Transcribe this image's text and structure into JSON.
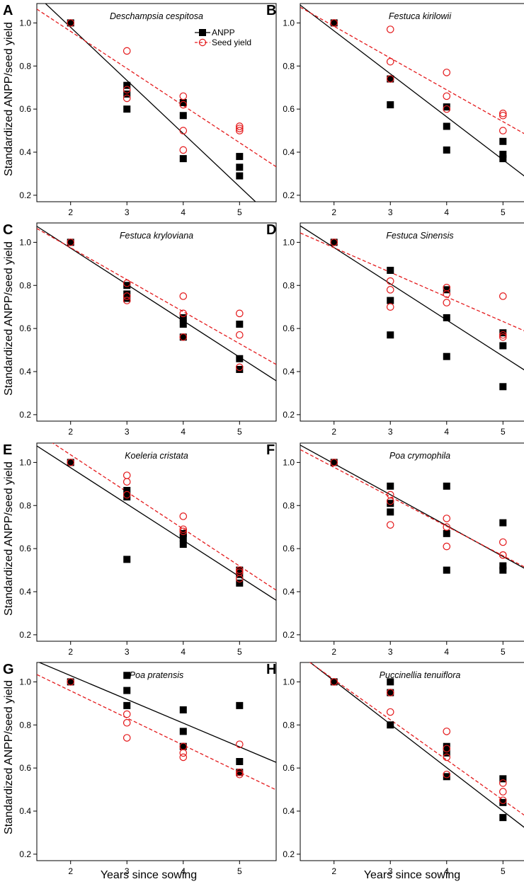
{
  "figure": {
    "ylabel": "Standardized ANPP/seed yield",
    "xlabel": "Years since sowing",
    "legend": [
      {
        "label": "ANPP",
        "marker": "filled-square",
        "line": "solid",
        "color": "#000000"
      },
      {
        "label": "Seed yield",
        "marker": "open-circle",
        "line": "dashed",
        "color": "#e41a1c"
      }
    ],
    "colors": {
      "anpp": "#000000",
      "seed": "#e41a1c"
    }
  },
  "chart_data": [
    {
      "type": "scatter",
      "letter": "A",
      "title": "Deschampsia cespitosa",
      "x_ticks": [
        2,
        3,
        4,
        5
      ],
      "y_ticks": [
        0.2,
        0.4,
        0.6,
        0.8,
        1.0
      ],
      "xlim": [
        1.4,
        5.65
      ],
      "ylim": [
        0.17,
        1.09
      ],
      "anpp": [
        [
          2,
          1.0
        ],
        [
          3,
          0.71
        ],
        [
          3,
          0.67
        ],
        [
          3,
          0.6
        ],
        [
          4,
          0.63
        ],
        [
          4,
          0.57
        ],
        [
          4,
          0.37
        ],
        [
          5,
          0.38
        ],
        [
          5,
          0.33
        ],
        [
          5,
          0.29
        ]
      ],
      "seed": [
        [
          2,
          1.0
        ],
        [
          3,
          0.87
        ],
        [
          3,
          0.69
        ],
        [
          3,
          0.65
        ],
        [
          4,
          0.66
        ],
        [
          4,
          0.62
        ],
        [
          4,
          0.5
        ],
        [
          4,
          0.41
        ],
        [
          5,
          0.52
        ],
        [
          5,
          0.51
        ],
        [
          5,
          0.5
        ]
      ],
      "anpp_fit": [
        -0.2467,
        1.4733
      ],
      "seed_fit": [
        -0.1722,
        1.3052
      ]
    },
    {
      "type": "scatter",
      "letter": "B",
      "title": "Festuca kirilowii",
      "x_ticks": [
        2,
        3,
        4,
        5
      ],
      "y_ticks": [
        0.2,
        0.4,
        0.6,
        0.8,
        1.0
      ],
      "xlim": [
        1.4,
        5.65
      ],
      "ylim": [
        0.17,
        1.09
      ],
      "anpp": [
        [
          2,
          1.0
        ],
        [
          3,
          0.74
        ],
        [
          3,
          0.62
        ],
        [
          4,
          0.61
        ],
        [
          4,
          0.52
        ],
        [
          4,
          0.41
        ],
        [
          5,
          0.45
        ],
        [
          5,
          0.39
        ],
        [
          5,
          0.37
        ]
      ],
      "seed": [
        [
          2,
          1.0
        ],
        [
          3,
          0.97
        ],
        [
          3,
          0.82
        ],
        [
          3,
          0.74
        ],
        [
          4,
          0.77
        ],
        [
          4,
          0.66
        ],
        [
          4,
          0.6
        ],
        [
          5,
          0.58
        ],
        [
          5,
          0.57
        ],
        [
          5,
          0.5
        ]
      ],
      "anpp_fit": [
        -0.1995,
        1.362
      ],
      "seed_fit": [
        -0.1476,
        1.2797
      ]
    },
    {
      "type": "scatter",
      "letter": "C",
      "title": "Festuca kryloviana",
      "x_ticks": [
        2,
        3,
        4,
        5
      ],
      "y_ticks": [
        0.2,
        0.4,
        0.6,
        0.8,
        1.0
      ],
      "xlim": [
        1.4,
        5.65
      ],
      "ylim": [
        0.17,
        1.09
      ],
      "anpp": [
        [
          2,
          1.0
        ],
        [
          3,
          0.8
        ],
        [
          3,
          0.76
        ],
        [
          3,
          0.74
        ],
        [
          4,
          0.65
        ],
        [
          4,
          0.62
        ],
        [
          4,
          0.56
        ],
        [
          5,
          0.62
        ],
        [
          5,
          0.46
        ],
        [
          5,
          0.41
        ]
      ],
      "seed": [
        [
          2,
          1.0
        ],
        [
          3,
          0.81
        ],
        [
          3,
          0.75
        ],
        [
          3,
          0.73
        ],
        [
          4,
          0.75
        ],
        [
          4,
          0.67
        ],
        [
          4,
          0.56
        ],
        [
          5,
          0.67
        ],
        [
          5,
          0.57
        ],
        [
          5,
          0.42
        ]
      ],
      "anpp_fit": [
        -0.1687,
        1.3105
      ],
      "seed_fit": [
        -0.1485,
        1.2722
      ]
    },
    {
      "type": "scatter",
      "letter": "D",
      "title": "Festuca Sinensis",
      "x_ticks": [
        2,
        3,
        4,
        5
      ],
      "y_ticks": [
        0.2,
        0.4,
        0.6,
        0.8,
        1.0
      ],
      "xlim": [
        1.4,
        5.65
      ],
      "ylim": [
        0.17,
        1.09
      ],
      "anpp": [
        [
          2,
          1.0
        ],
        [
          3,
          0.87
        ],
        [
          3,
          0.73
        ],
        [
          3,
          0.57
        ],
        [
          4,
          0.78
        ],
        [
          4,
          0.65
        ],
        [
          4,
          0.47
        ],
        [
          5,
          0.58
        ],
        [
          5,
          0.52
        ],
        [
          5,
          0.33
        ]
      ],
      "seed": [
        [
          2,
          1.0
        ],
        [
          3,
          0.82
        ],
        [
          3,
          0.78
        ],
        [
          3,
          0.7
        ],
        [
          4,
          0.79
        ],
        [
          4,
          0.76
        ],
        [
          4,
          0.72
        ],
        [
          5,
          0.75
        ],
        [
          5,
          0.57
        ],
        [
          5,
          0.56
        ]
      ],
      "anpp_fit": [
        -0.1682,
        1.3122
      ],
      "seed_fit": [
        -0.1142,
        1.2034
      ]
    },
    {
      "type": "scatter",
      "letter": "E",
      "title": "Koeleria cristata",
      "x_ticks": [
        2,
        3,
        4,
        5
      ],
      "y_ticks": [
        0.2,
        0.4,
        0.6,
        0.8,
        1.0
      ],
      "xlim": [
        1.4,
        5.65
      ],
      "ylim": [
        0.17,
        1.09
      ],
      "anpp": [
        [
          2,
          1.0
        ],
        [
          3,
          0.87
        ],
        [
          3,
          0.84
        ],
        [
          3,
          0.55
        ],
        [
          4,
          0.67
        ],
        [
          4,
          0.65
        ],
        [
          4,
          0.62
        ],
        [
          5,
          0.5
        ],
        [
          5,
          0.48
        ],
        [
          5,
          0.44
        ]
      ],
      "seed": [
        [
          2,
          1.0
        ],
        [
          3,
          0.94
        ],
        [
          3,
          0.91
        ],
        [
          3,
          0.85
        ],
        [
          4,
          0.75
        ],
        [
          4,
          0.69
        ],
        [
          4,
          0.68
        ],
        [
          5,
          0.5
        ],
        [
          5,
          0.49
        ],
        [
          5,
          0.46
        ]
      ],
      "anpp_fit": [
        -0.1686,
        1.3128
      ],
      "seed_fit": [
        -0.1722,
        1.38
      ]
    },
    {
      "type": "scatter",
      "letter": "F",
      "title": "Poa crymophila",
      "x_ticks": [
        2,
        3,
        4,
        5
      ],
      "y_ticks": [
        0.2,
        0.4,
        0.6,
        0.8,
        1.0
      ],
      "xlim": [
        1.4,
        5.65
      ],
      "ylim": [
        0.17,
        1.09
      ],
      "anpp": [
        [
          2,
          1.0
        ],
        [
          3,
          0.89
        ],
        [
          3,
          0.81
        ],
        [
          3,
          0.77
        ],
        [
          4,
          0.89
        ],
        [
          4,
          0.67
        ],
        [
          4,
          0.5
        ],
        [
          5,
          0.72
        ],
        [
          5,
          0.52
        ],
        [
          5,
          0.5
        ]
      ],
      "seed": [
        [
          2,
          1.0
        ],
        [
          3,
          0.85
        ],
        [
          3,
          0.82
        ],
        [
          3,
          0.71
        ],
        [
          4,
          0.74
        ],
        [
          4,
          0.7
        ],
        [
          4,
          0.61
        ],
        [
          5,
          0.63
        ],
        [
          5,
          0.57
        ],
        [
          5,
          0.57
        ]
      ],
      "anpp_fit": [
        -0.1437,
        1.2817
      ],
      "seed_fit": [
        -0.1368,
        1.251
      ]
    },
    {
      "type": "scatter",
      "letter": "G",
      "title": "Poa pratensis",
      "x_ticks": [
        2,
        3,
        4,
        5
      ],
      "y_ticks": [
        0.2,
        0.4,
        0.6,
        0.8,
        1.0
      ],
      "xlim": [
        1.4,
        5.65
      ],
      "ylim": [
        0.17,
        1.09
      ],
      "anpp": [
        [
          2,
          1.0
        ],
        [
          3,
          1.03
        ],
        [
          3,
          0.96
        ],
        [
          3,
          0.89
        ],
        [
          4,
          0.87
        ],
        [
          4,
          0.77
        ],
        [
          4,
          0.7
        ],
        [
          5,
          0.89
        ],
        [
          5,
          0.63
        ],
        [
          5,
          0.58
        ]
      ],
      "seed": [
        [
          2,
          1.0
        ],
        [
          3,
          0.85
        ],
        [
          3,
          0.81
        ],
        [
          3,
          0.74
        ],
        [
          4,
          0.7
        ],
        [
          4,
          0.67
        ],
        [
          4,
          0.65
        ],
        [
          5,
          0.71
        ],
        [
          5,
          0.58
        ],
        [
          5,
          0.57
        ]
      ],
      "anpp_fit": [
        -0.1103,
        1.2495
      ],
      "seed_fit": [
        -0.126,
        1.2103
      ]
    },
    {
      "type": "scatter",
      "letter": "H",
      "title": "Puccinellia tenuiflora",
      "x_ticks": [
        2,
        3,
        4,
        5
      ],
      "y_ticks": [
        0.2,
        0.4,
        0.6,
        0.8,
        1.0
      ],
      "xlim": [
        1.4,
        5.65
      ],
      "ylim": [
        0.17,
        1.09
      ],
      "anpp": [
        [
          2,
          1.0
        ],
        [
          3,
          1.0
        ],
        [
          3,
          0.95
        ],
        [
          3,
          0.8
        ],
        [
          4,
          0.7
        ],
        [
          4,
          0.67
        ],
        [
          4,
          0.56
        ],
        [
          5,
          0.55
        ],
        [
          5,
          0.44
        ],
        [
          5,
          0.37
        ]
      ],
      "seed": [
        [
          2,
          1.0
        ],
        [
          3,
          0.95
        ],
        [
          3,
          0.86
        ],
        [
          4,
          0.77
        ],
        [
          4,
          0.69
        ],
        [
          4,
          0.65
        ],
        [
          4,
          0.57
        ],
        [
          5,
          0.53
        ],
        [
          5,
          0.49
        ],
        [
          5,
          0.45
        ]
      ],
      "anpp_fit": [
        -0.2015,
        1.408
      ],
      "seed_fit": [
        -0.1863,
        1.383
      ]
    }
  ]
}
